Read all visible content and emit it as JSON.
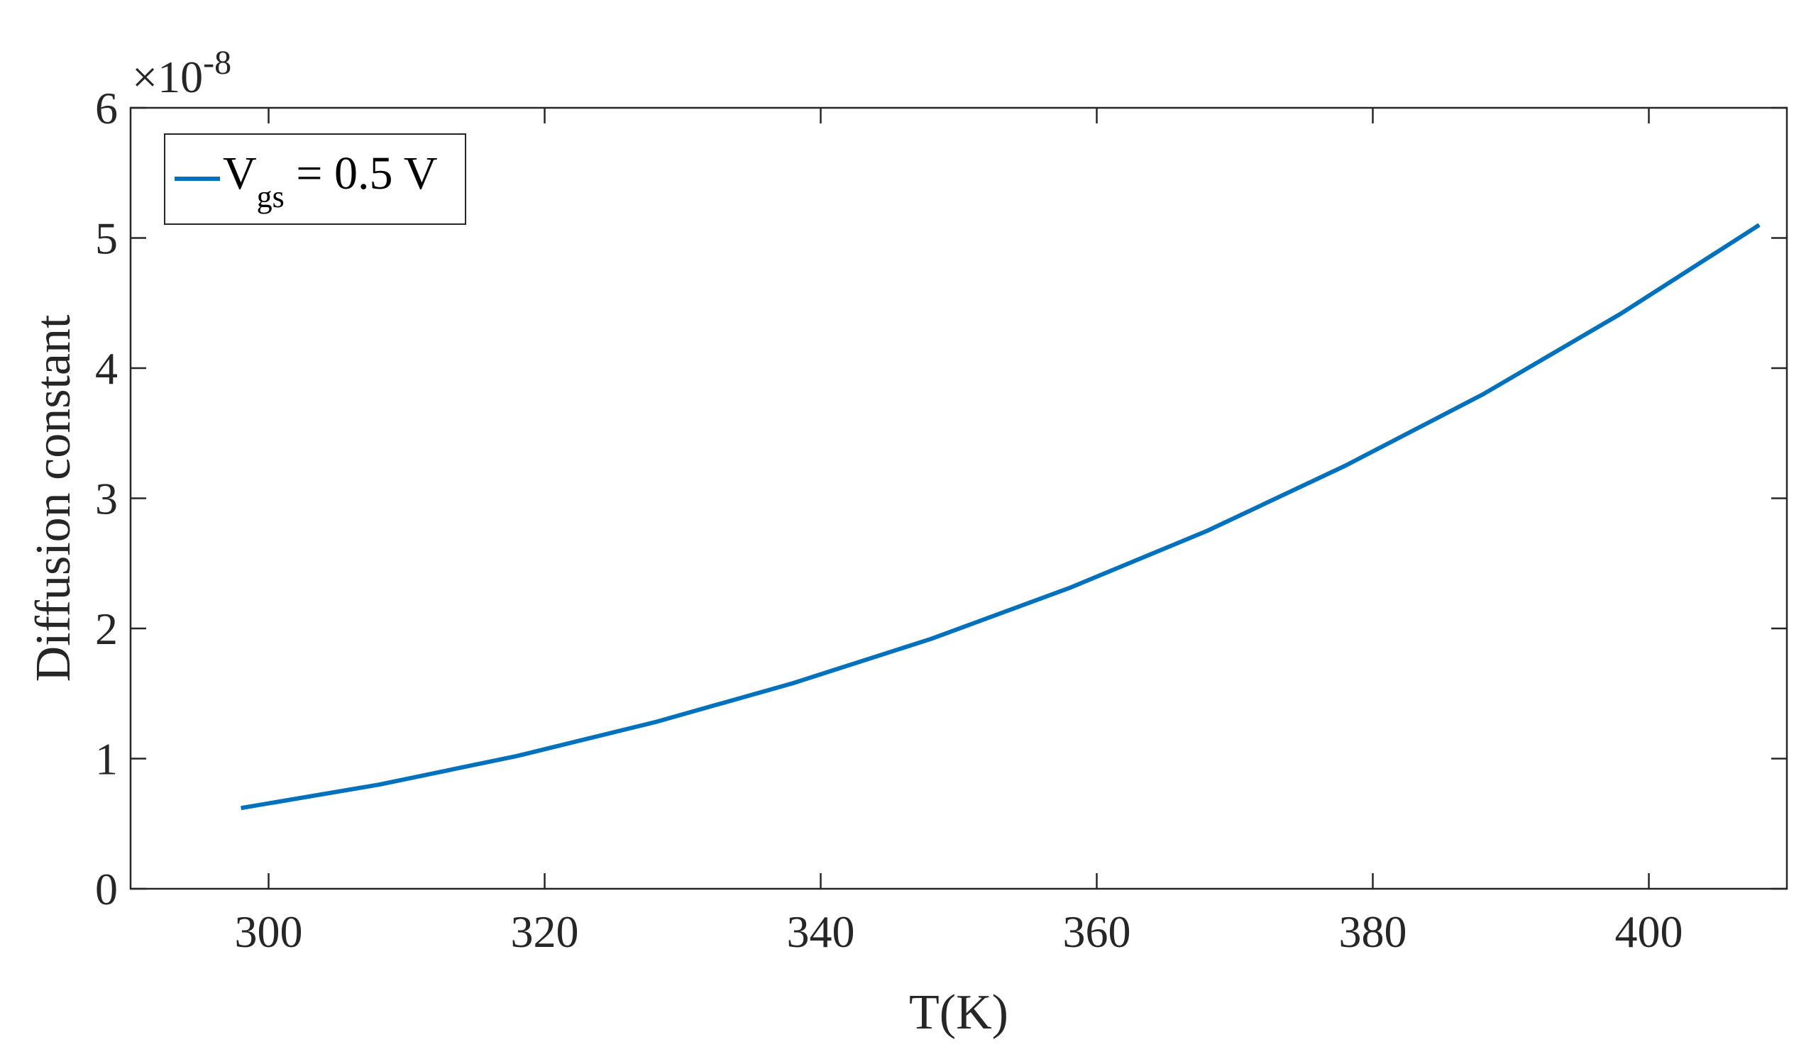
{
  "chart_data": {
    "type": "line",
    "xlabel": "T(K)",
    "ylabel": "Diffusion constant",
    "exponent_label": {
      "base": "×10",
      "power": "-8"
    },
    "xlim": [
      290,
      410
    ],
    "ylim": [
      0,
      6
    ],
    "xticks": [
      300,
      320,
      340,
      360,
      380,
      400
    ],
    "xtick_labels": [
      "300",
      "320",
      "340",
      "360",
      "380",
      "400"
    ],
    "yticks": [
      0,
      1,
      2,
      3,
      4,
      5,
      6
    ],
    "ytick_labels": [
      "0",
      "1",
      "2",
      "3",
      "4",
      "5",
      "6"
    ],
    "grid": false,
    "legend_position": "top-left",
    "series": [
      {
        "name": "V_gs = 0.5 V",
        "legend": {
          "main": "V",
          "subscript": "gs",
          "rest": " = 0.5 V"
        },
        "color": "#0072BD",
        "x": [
          298,
          308,
          318,
          328,
          338,
          348,
          358,
          368,
          378,
          388,
          398,
          408
        ],
        "values": [
          0.62,
          0.8,
          1.02,
          1.28,
          1.58,
          1.92,
          2.31,
          2.75,
          3.25,
          3.8,
          4.42,
          5.1
        ]
      }
    ]
  }
}
